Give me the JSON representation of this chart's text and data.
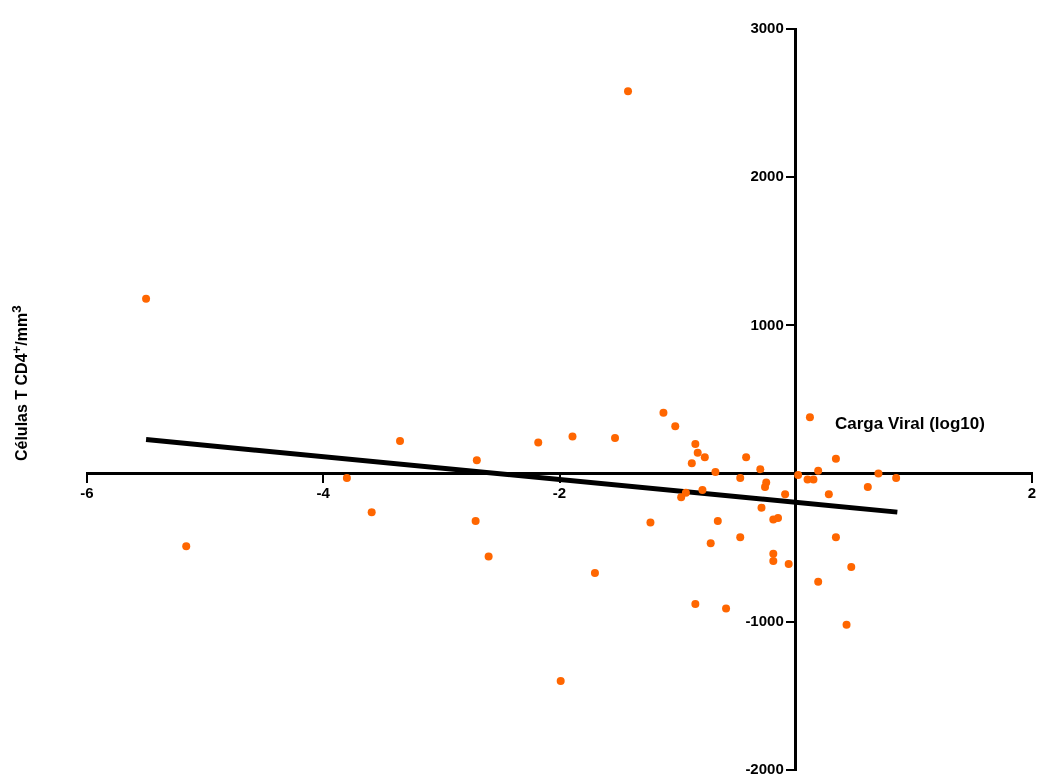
{
  "chart_data": {
    "type": "scatter",
    "xlabel": "Carga Viral (log10)",
    "ylabel": "Células T CD4$^{+}$/mm$^{3}$",
    "xlim": [
      -6,
      2
    ],
    "ylim": [
      -2000,
      3000
    ],
    "xticks": [
      -6,
      -4,
      -2,
      2
    ],
    "yticks": [
      -2000,
      -1000,
      1000,
      2000,
      3000
    ],
    "grid": false,
    "legend": false,
    "marker": "circle",
    "series": [
      {
        "color": "#ff6600",
        "x": [
          -5.5,
          -5.16,
          -3.8,
          -3.59,
          -3.35,
          -2.71,
          -2.7,
          -2.6,
          -2.18,
          -1.99,
          -1.89,
          -1.7,
          -1.53,
          -1.42,
          -1.23,
          -1.12,
          -1.02,
          -0.85,
          -0.83,
          -0.77,
          -0.88,
          -0.68,
          -0.42,
          -0.3,
          -0.47,
          -0.25,
          -0.26,
          -0.09,
          -0.97,
          -0.93,
          -0.79,
          0.02,
          0.12,
          0.1,
          0.15,
          0.19,
          0.34,
          0.28,
          0.61,
          0.7,
          0.85,
          -0.29,
          -0.66,
          -0.15,
          -0.19,
          -0.47,
          -0.72,
          0.34,
          -0.19,
          -0.19,
          -0.06,
          0.47,
          0.19,
          -0.85,
          -0.59,
          0.43
        ],
        "values": [
          1180,
          -490,
          -30,
          -260,
          220,
          -320,
          90,
          -560,
          210,
          -1400,
          250,
          -670,
          240,
          2580,
          -330,
          410,
          320,
          200,
          140,
          110,
          70,
          10,
          110,
          30,
          -30,
          -60,
          -90,
          -140,
          -160,
          -130,
          -110,
          -10,
          380,
          -40,
          -40,
          20,
          100,
          -140,
          -90,
          0,
          -30,
          -230,
          -320,
          -300,
          -310,
          -430,
          -470,
          -430,
          -540,
          -590,
          -610,
          -630,
          -730,
          -880,
          -910,
          -1020
        ]
      },
      {
        "type": "line",
        "color": "#000000",
        "marker": "none",
        "x": [
          -5.5,
          0.86
        ],
        "values": [
          230,
          -260
        ]
      }
    ]
  }
}
